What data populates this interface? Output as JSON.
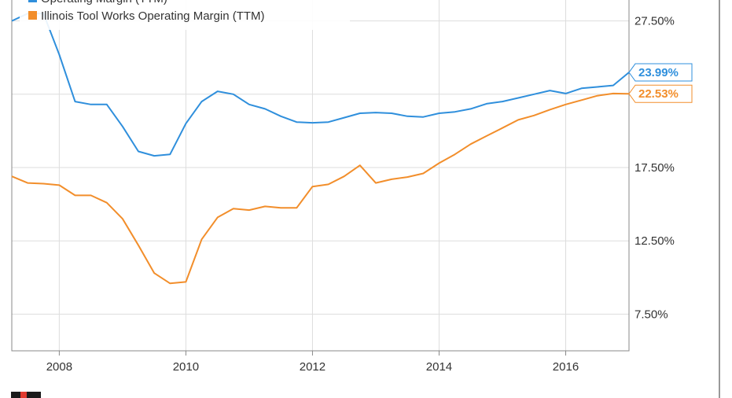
{
  "chart_data": {
    "type": "line",
    "title": "",
    "xlabel": "",
    "ylabel": "",
    "xlim": [
      2007.25,
      2017.0
    ],
    "ylim": [
      5.0,
      30.0
    ],
    "grid": true,
    "legend_position": "top-left",
    "y_ticks": [
      {
        "value": 7.5,
        "label": "7.50%"
      },
      {
        "value": 12.5,
        "label": "12.50%"
      },
      {
        "value": 17.5,
        "label": "17.50%"
      },
      {
        "value": 27.5,
        "label": "27.50%"
      }
    ],
    "x_ticks": [
      {
        "value": 2008,
        "label": "2008"
      },
      {
        "value": 2010,
        "label": "2010"
      },
      {
        "value": 2012,
        "label": "2012"
      },
      {
        "value": 2014,
        "label": "2014"
      },
      {
        "value": 2016,
        "label": "2016"
      }
    ],
    "series": [
      {
        "name": "Operating Margin (TTM)",
        "color": "#2f8fdc",
        "end_label": "23.99%",
        "points": [
          [
            2007.25,
            27.5
          ],
          [
            2007.5,
            28.0
          ],
          [
            2007.75,
            28.0
          ],
          [
            2008.0,
            25.2
          ],
          [
            2008.25,
            22.0
          ],
          [
            2008.5,
            21.8
          ],
          [
            2008.75,
            21.8
          ],
          [
            2009.0,
            20.3
          ],
          [
            2009.25,
            18.6
          ],
          [
            2009.5,
            18.3
          ],
          [
            2009.75,
            18.4
          ],
          [
            2010.0,
            20.5
          ],
          [
            2010.25,
            22.0
          ],
          [
            2010.5,
            22.7
          ],
          [
            2010.75,
            22.5
          ],
          [
            2011.0,
            21.8
          ],
          [
            2011.25,
            21.5
          ],
          [
            2011.5,
            21.0
          ],
          [
            2011.75,
            20.6
          ],
          [
            2012.0,
            20.55
          ],
          [
            2012.25,
            20.6
          ],
          [
            2012.5,
            20.9
          ],
          [
            2012.75,
            21.2
          ],
          [
            2013.0,
            21.25
          ],
          [
            2013.25,
            21.2
          ],
          [
            2013.5,
            21.0
          ],
          [
            2013.75,
            20.95
          ],
          [
            2014.0,
            21.2
          ],
          [
            2014.25,
            21.3
          ],
          [
            2014.5,
            21.5
          ],
          [
            2014.75,
            21.85
          ],
          [
            2015.0,
            22.0
          ],
          [
            2015.25,
            22.25
          ],
          [
            2015.5,
            22.5
          ],
          [
            2015.75,
            22.75
          ],
          [
            2016.0,
            22.55
          ],
          [
            2016.25,
            22.9
          ],
          [
            2016.5,
            23.0
          ],
          [
            2016.75,
            23.1
          ],
          [
            2017.0,
            23.99
          ]
        ]
      },
      {
        "name": "Illinois Tool Works Operating Margin (TTM)",
        "color": "#f28e2b",
        "end_label": "22.53%",
        "points": [
          [
            2007.25,
            16.9
          ],
          [
            2007.5,
            16.45
          ],
          [
            2007.75,
            16.4
          ],
          [
            2008.0,
            16.3
          ],
          [
            2008.25,
            15.6
          ],
          [
            2008.5,
            15.6
          ],
          [
            2008.75,
            15.1
          ],
          [
            2009.0,
            14.0
          ],
          [
            2009.25,
            12.2
          ],
          [
            2009.5,
            10.3
          ],
          [
            2009.75,
            9.6
          ],
          [
            2010.0,
            9.7
          ],
          [
            2010.25,
            12.6
          ],
          [
            2010.5,
            14.1
          ],
          [
            2010.75,
            14.7
          ],
          [
            2011.0,
            14.6
          ],
          [
            2011.25,
            14.85
          ],
          [
            2011.5,
            14.75
          ],
          [
            2011.75,
            14.75
          ],
          [
            2012.0,
            16.2
          ],
          [
            2012.25,
            16.35
          ],
          [
            2012.5,
            16.9
          ],
          [
            2012.75,
            17.65
          ],
          [
            2013.0,
            16.45
          ],
          [
            2013.25,
            16.7
          ],
          [
            2013.5,
            16.85
          ],
          [
            2013.75,
            17.1
          ],
          [
            2014.0,
            17.8
          ],
          [
            2014.25,
            18.4
          ],
          [
            2014.5,
            19.1
          ],
          [
            2014.75,
            19.65
          ],
          [
            2015.0,
            20.2
          ],
          [
            2015.25,
            20.75
          ],
          [
            2015.5,
            21.05
          ],
          [
            2015.75,
            21.45
          ],
          [
            2016.0,
            21.8
          ],
          [
            2016.25,
            22.1
          ],
          [
            2016.5,
            22.4
          ],
          [
            2016.75,
            22.55
          ],
          [
            2017.0,
            22.53
          ]
        ]
      }
    ],
    "legend": [
      {
        "label": "Operating Margin (TTM)",
        "color": "#2f8fdc"
      },
      {
        "label": "Illinois Tool Works Operating Margin (TTM)",
        "color": "#f28e2b"
      }
    ]
  }
}
